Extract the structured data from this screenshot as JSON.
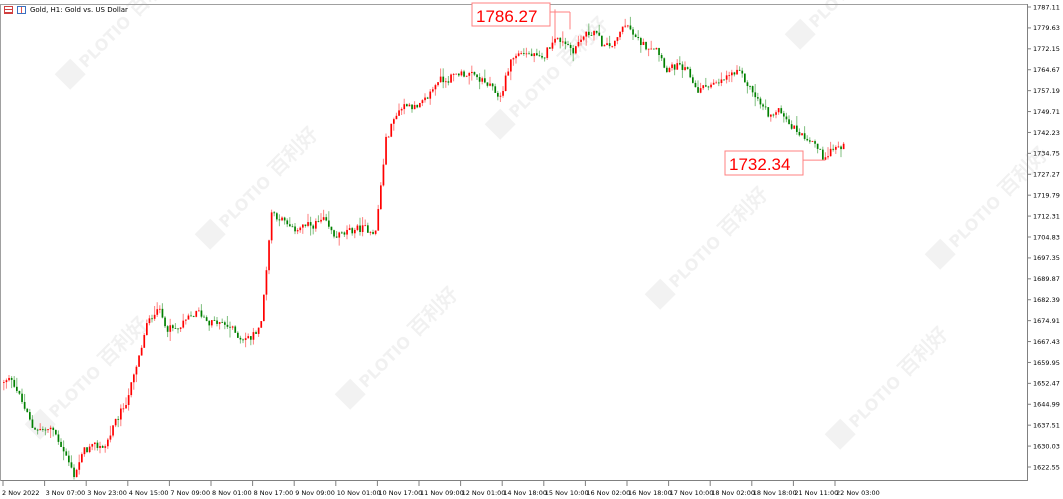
{
  "window": {
    "title": "Gold, H1:  Gold vs. US Dollar",
    "icons": [
      "chart-grid-icon",
      "chart-type-icon"
    ]
  },
  "watermark": {
    "brand": "PLOTIO",
    "cn": "百利好"
  },
  "chart_data": {
    "type": "candlestick",
    "symbol": "Gold",
    "timeframe": "H1",
    "title": "Gold, H1:  Gold vs. US Dollar",
    "colors": {
      "up": "#ff0000",
      "down": "#008000",
      "marker": "#ff0000",
      "axis": "#808080"
    },
    "ylim": [
      1617.0,
      1789.0
    ],
    "y_ticks": [
      "1787.11",
      "1779.63",
      "1772.15",
      "1764.67",
      "1757.19",
      "1749.71",
      "1742.23",
      "1734.75",
      "1727.27",
      "1719.79",
      "1712.31",
      "1704.83",
      "1697.35",
      "1689.87",
      "1682.39",
      "1674.91",
      "1667.43",
      "1659.95",
      "1652.47",
      "1644.99",
      "1637.51",
      "1630.03",
      "1622.55"
    ],
    "x_ticks": [
      "2 Nov 2022",
      "3 Nov 07:00",
      "3 Nov 23:00",
      "4 Nov 15:00",
      "7 Nov 09:00",
      "8 Nov 01:00",
      "8 Nov 17:00",
      "9 Nov 09:00",
      "10 Nov 01:00",
      "10 Nov 17:00",
      "11 Nov 09:00",
      "12 Nov 01:00",
      "14 Nov 18:00",
      "15 Nov 10:00",
      "16 Nov 02:00",
      "16 Nov 18:00",
      "17 Nov 10:00",
      "18 Nov 02:00",
      "18 Nov 18:00",
      "21 Nov 11:00",
      "22 Nov 03:00"
    ],
    "bars_per_x_tick": 16,
    "close_every_4_bars": [
      1651.9,
      1654.4,
      1645.8,
      1636.8,
      1635.8,
      1635.8,
      1628.6,
      1619.7,
      1628.6,
      1630.0,
      1630.0,
      1638.6,
      1645.8,
      1657.9,
      1673.3,
      1679.8,
      1672.2,
      1671.5,
      1675.8,
      1678.0,
      1674.4,
      1674.0,
      1672.6,
      1668.7,
      1668.7,
      1674.0,
      1713.8,
      1710.9,
      1707.3,
      1708.7,
      1709.1,
      1710.9,
      1705.2,
      1705.9,
      1707.7,
      1708.0,
      1706.6,
      1739.5,
      1749.2,
      1752.8,
      1750.6,
      1754.9,
      1761.0,
      1761.3,
      1763.5,
      1763.1,
      1761.3,
      1758.5,
      1754.9,
      1768.1,
      1771.0,
      1769.9,
      1768.1,
      1775.3,
      1775.3,
      1771.7,
      1776.7,
      1778.5,
      1772.8,
      1773.9,
      1781.7,
      1775.7,
      1773.1,
      1772.8,
      1764.6,
      1766.0,
      1763.8,
      1757.0,
      1759.5,
      1759.5,
      1762.8,
      1763.5,
      1758.1,
      1752.4,
      1748.1,
      1750.2,
      1744.5,
      1741.3,
      1739.5,
      1733.4,
      1736.6,
      1737.0
    ],
    "annotations": [
      {
        "type": "high",
        "label": "1786.27",
        "value": 1786.27
      },
      {
        "type": "low",
        "label": "1732.34",
        "value": 1732.34
      }
    ],
    "grid": false
  }
}
